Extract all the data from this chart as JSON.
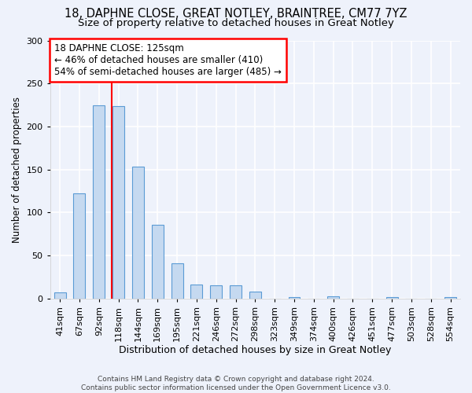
{
  "title_line1": "18, DAPHNE CLOSE, GREAT NOTLEY, BRAINTREE, CM77 7YZ",
  "title_line2": "Size of property relative to detached houses in Great Notley",
  "xlabel": "Distribution of detached houses by size in Great Notley",
  "ylabel": "Number of detached properties",
  "bin_labels": [
    "41sqm",
    "67sqm",
    "92sqm",
    "118sqm",
    "144sqm",
    "169sqm",
    "195sqm",
    "221sqm",
    "246sqm",
    "272sqm",
    "298sqm",
    "323sqm",
    "349sqm",
    "374sqm",
    "400sqm",
    "426sqm",
    "451sqm",
    "477sqm",
    "503sqm",
    "528sqm",
    "554sqm"
  ],
  "bar_values": [
    7,
    122,
    225,
    224,
    153,
    86,
    41,
    16,
    15,
    15,
    8,
    0,
    2,
    0,
    3,
    0,
    0,
    2,
    0,
    0,
    2
  ],
  "bar_color": "#c5d9f0",
  "bar_edge_color": "#5b9bd5",
  "annotation_box_text": "18 DAPHNE CLOSE: 125sqm\n← 46% of detached houses are smaller (410)\n54% of semi-detached houses are larger (485) →",
  "annotation_box_color": "red",
  "annotation_box_fill": "white",
  "annotation_fontsize": 8.5,
  "vline_x": 2.67,
  "vline_color": "red",
  "ylim": [
    0,
    300
  ],
  "yticks": [
    0,
    50,
    100,
    150,
    200,
    250,
    300
  ],
  "background_color": "#eef2fb",
  "grid_color": "#ffffff",
  "title_fontsize": 10.5,
  "subtitle_fontsize": 9.5,
  "xlabel_fontsize": 9,
  "ylabel_fontsize": 8.5,
  "tick_fontsize": 8,
  "footer_text": "Contains HM Land Registry data © Crown copyright and database right 2024.\nContains public sector information licensed under the Open Government Licence v3.0."
}
